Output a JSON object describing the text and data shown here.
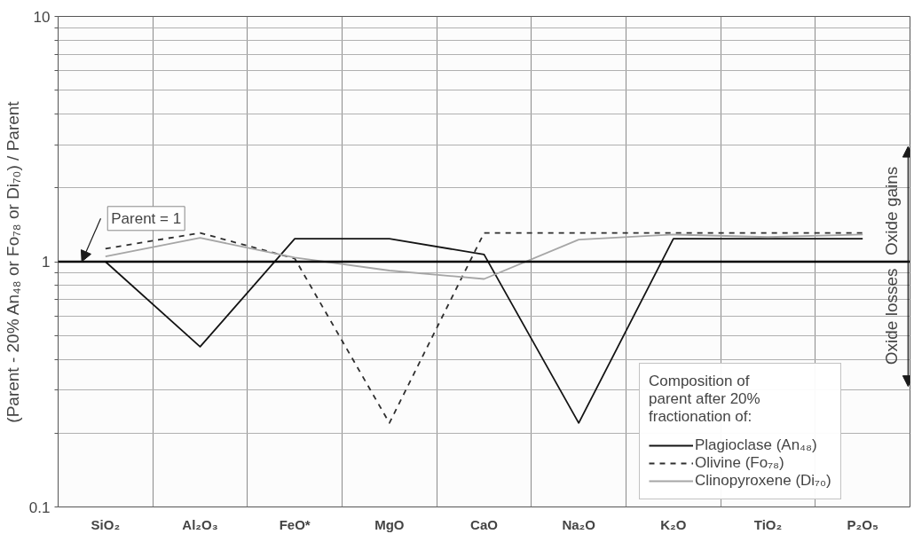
{
  "chart_data": {
    "type": "line",
    "ylabel": "(Parent - 20% An₄₈ or Fo₇₈ or Di₇₀) / Parent",
    "legend_title": "Composition of parent after 20% fractionation of:",
    "categories": [
      "SiO₂",
      "Al₂O₃",
      "FeO*",
      "MgO",
      "CaO",
      "Na₂O",
      "K₂O",
      "TiO₂",
      "P₂O₅"
    ],
    "series": [
      {
        "name": "Plagioclase (An₄₈)",
        "color": "#141414",
        "line_style": "solid",
        "values": [
          1.0,
          0.45,
          1.24,
          1.24,
          1.07,
          0.22,
          1.24,
          1.24,
          1.24
        ]
      },
      {
        "name": "Olivine (Fo₇₈)",
        "color": "#2e2e2e",
        "line_style": "dashed",
        "values": [
          1.13,
          1.31,
          1.03,
          0.22,
          1.31,
          1.31,
          1.31,
          1.31,
          1.31
        ]
      },
      {
        "name": "Clinopyroxene (Di₇₀)",
        "color": "#a6a6a6",
        "line_style": "solid",
        "values": [
          1.05,
          1.25,
          1.04,
          0.92,
          0.85,
          1.23,
          1.29,
          1.26,
          1.29
        ]
      }
    ],
    "log": "y",
    "ylim": [
      0.1,
      10
    ],
    "yticks": [
      0.1,
      {
        "value": 0.2,
        "label": null
      },
      {
        "value": 0.3,
        "label": null
      },
      {
        "value": 0.4,
        "label": null
      },
      {
        "value": 0.5,
        "label": null
      },
      {
        "value": 0.6,
        "label": null
      },
      {
        "value": 0.7,
        "label": null
      },
      {
        "value": 0.8,
        "label": null
      },
      {
        "value": 0.9,
        "label": null
      },
      1,
      {
        "value": 2,
        "label": null
      },
      {
        "value": 3,
        "label": null
      },
      {
        "value": 4,
        "label": null
      },
      {
        "value": 5,
        "label": null
      },
      {
        "value": 6,
        "label": null
      },
      {
        "value": 7,
        "label": null
      },
      {
        "value": 8,
        "label": null
      },
      {
        "value": 9,
        "label": null
      },
      10
    ],
    "ref_lines": [
      {
        "axis": "y",
        "value": 1,
        "label": "Parent = 1",
        "color": "#000000"
      }
    ],
    "annotations": [
      "Oxide gains",
      "Oxide losses"
    ],
    "grid": true,
    "legend": "bottom right"
  }
}
